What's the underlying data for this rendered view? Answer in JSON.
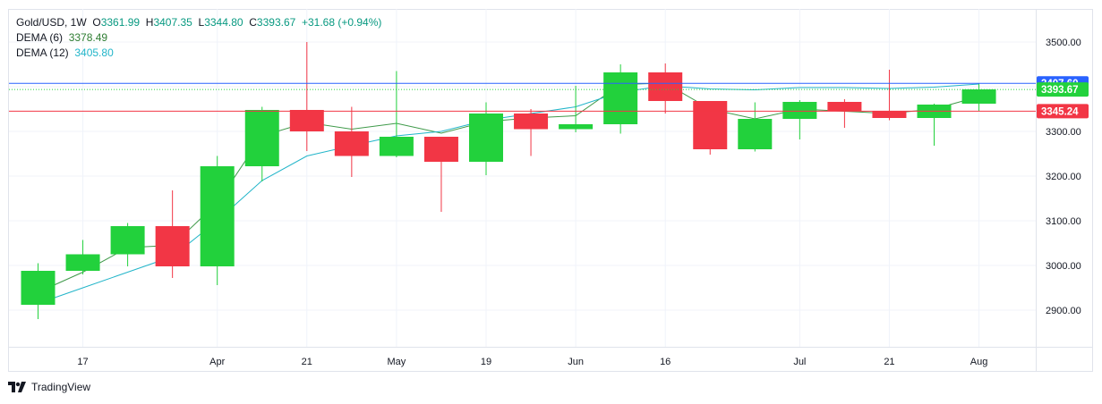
{
  "legend": {
    "symbol": "Gold/USD, 1W",
    "o_label": "O",
    "o_value": "3361.99",
    "h_label": "H",
    "h_value": "3407.35",
    "l_label": "L",
    "l_value": "3344.80",
    "c_label": "C",
    "c_value": "3393.67",
    "change": "+31.68 (+0.94%)",
    "dema6_label": "DEMA (6)",
    "dema6_value": "3378.49",
    "dema12_label": "DEMA (12)",
    "dema12_value": "3405.80"
  },
  "branding": {
    "logo_text": "TradingView"
  },
  "colors": {
    "up": "#22d13c",
    "down": "#f23645",
    "wick_up": "#22d13c",
    "wick_down": "#f23645",
    "dema6": "#3f9a4a",
    "dema12": "#22b5c9",
    "line_blue": "#2962ff",
    "line_red": "#f23645",
    "grid": "#f0f3fa",
    "axis_text": "#131722"
  },
  "chart_data": {
    "type": "candlestick",
    "title": "Gold/USD, 1W",
    "y_ticks": [
      2900,
      3000,
      3100,
      3200,
      3300,
      3400,
      3500
    ],
    "y_tick_labels": [
      "2900.00",
      "3000.00",
      "3100.00",
      "3200.00",
      "3300.00",
      "3400.00",
      "3500.00"
    ],
    "ylim": [
      2820,
      3580
    ],
    "x_labels": [
      {
        "label": "17",
        "index": 1
      },
      {
        "label": "Apr",
        "index": 4
      },
      {
        "label": "21",
        "index": 6
      },
      {
        "label": "May",
        "index": 8
      },
      {
        "label": "19",
        "index": 10
      },
      {
        "label": "Jun",
        "index": 12
      },
      {
        "label": "16",
        "index": 14
      },
      {
        "label": "Jul",
        "index": 17
      },
      {
        "label": "21",
        "index": 19
      },
      {
        "label": "Aug",
        "index": 21
      }
    ],
    "candles": [
      {
        "o": 2912,
        "h": 3005,
        "l": 2880,
        "c": 2988
      },
      {
        "o": 2988,
        "h": 3057,
        "l": 2980,
        "c": 3025
      },
      {
        "o": 3025,
        "h": 3095,
        "l": 2998,
        "c": 3088
      },
      {
        "o": 3088,
        "h": 3168,
        "l": 2972,
        "c": 2998
      },
      {
        "o": 2998,
        "h": 3245,
        "l": 2956,
        "c": 3222
      },
      {
        "o": 3222,
        "h": 3355,
        "l": 3188,
        "c": 3348
      },
      {
        "o": 3348,
        "h": 3500,
        "l": 3256,
        "c": 3300
      },
      {
        "o": 3300,
        "h": 3355,
        "l": 3198,
        "c": 3245
      },
      {
        "o": 3245,
        "h": 3435,
        "l": 3242,
        "c": 3288
      },
      {
        "o": 3288,
        "h": 3288,
        "l": 3120,
        "c": 3232
      },
      {
        "o": 3232,
        "h": 3365,
        "l": 3202,
        "c": 3340
      },
      {
        "o": 3340,
        "h": 3350,
        "l": 3245,
        "c": 3305
      },
      {
        "o": 3305,
        "h": 3402,
        "l": 3298,
        "c": 3316
      },
      {
        "o": 3316,
        "h": 3450,
        "l": 3295,
        "c": 3432
      },
      {
        "o": 3432,
        "h": 3452,
        "l": 3340,
        "c": 3368
      },
      {
        "o": 3368,
        "h": 3368,
        "l": 3248,
        "c": 3260
      },
      {
        "o": 3260,
        "h": 3365,
        "l": 3255,
        "c": 3328
      },
      {
        "o": 3328,
        "h": 3370,
        "l": 3282,
        "c": 3366
      },
      {
        "o": 3366,
        "h": 3372,
        "l": 3308,
        "c": 3345
      },
      {
        "o": 3345,
        "h": 3438,
        "l": 3325,
        "c": 3330
      },
      {
        "o": 3330,
        "h": 3362,
        "l": 3268,
        "c": 3360
      },
      {
        "o": 3362,
        "h": 3407,
        "l": 3345,
        "c": 3394
      }
    ],
    "series": [
      {
        "name": "DEMA (6)",
        "values": [
          2940,
          2985,
          3040,
          3045,
          3140,
          3290,
          3320,
          3305,
          3318,
          3296,
          3322,
          3330,
          3335,
          3405,
          3408,
          3350,
          3328,
          3350,
          3345,
          3340,
          3350,
          3378
        ]
      },
      {
        "name": "DEMA (12)",
        "values": [
          2915,
          2950,
          2985,
          3020,
          3100,
          3190,
          3245,
          3268,
          3290,
          3300,
          3325,
          3340,
          3355,
          3388,
          3402,
          3395,
          3393,
          3398,
          3398,
          3396,
          3399,
          3406
        ]
      }
    ],
    "price_lines": [
      {
        "value": 3407.6,
        "label": "3407.60",
        "color": "#2962ff"
      },
      {
        "value": 3393.67,
        "label": "3393.67",
        "color": "#22d13c",
        "dotted": true
      },
      {
        "value": 3345.24,
        "label": "3345.24",
        "color": "#f23645"
      }
    ]
  }
}
